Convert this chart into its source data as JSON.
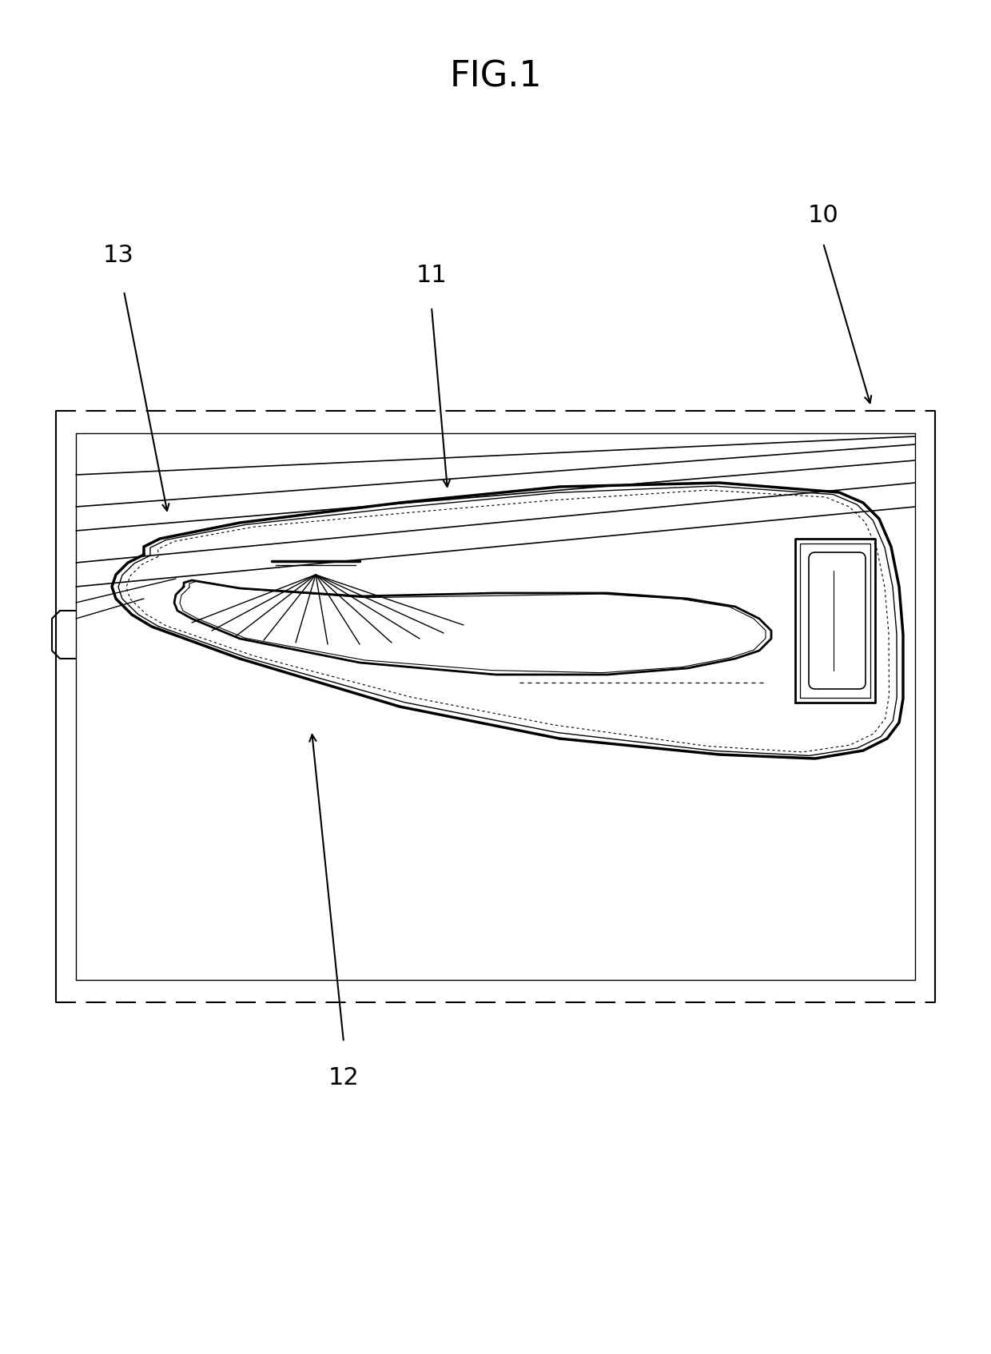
{
  "title": "FIG.1",
  "title_fontsize": 32,
  "background_color": "#ffffff",
  "line_color": "#000000",
  "label_color": "#000000",
  "label_fontsize": 22,
  "fig_width": 12.4,
  "fig_height": 16.94,
  "dpi": 100
}
